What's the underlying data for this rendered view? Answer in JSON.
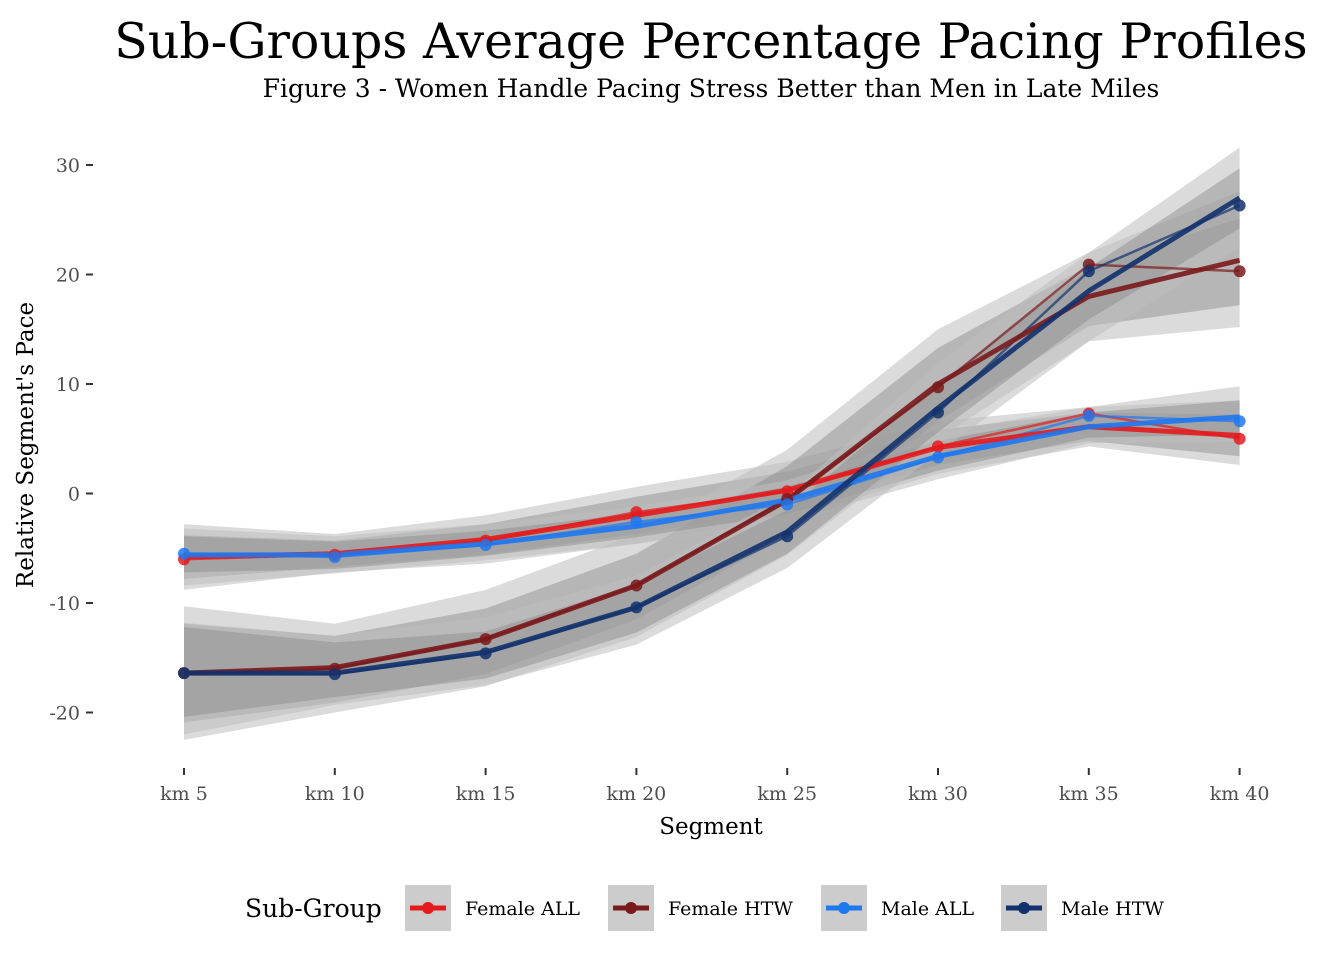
{
  "chart_data": {
    "type": "line",
    "title": "Sub-Groups Average Percentage Pacing Profiles",
    "subtitle": "Figure 3 - Women Handle Pacing Stress Better than Men in Late Miles",
    "xlabel": "Segment",
    "ylabel": "Relative Segment's Pace",
    "categories": [
      "km 5",
      "km 10",
      "km 15",
      "km 20",
      "km 25",
      "km 30",
      "km 35",
      "km 40"
    ],
    "ylim": [
      -25,
      31
    ],
    "yticks": [
      -20,
      -10,
      0,
      10,
      20,
      30
    ],
    "ytick_labels": [
      "-20",
      "-10",
      "0",
      "10",
      "20",
      "30"
    ],
    "grid": false,
    "legend": {
      "title": "Sub-Group",
      "position": "bottom"
    },
    "series": [
      {
        "name": "Female ALL",
        "color": "#e41a1c",
        "values": [
          -6.0,
          -5.6,
          -4.3,
          -1.7,
          0.2,
          4.3,
          7.3,
          5.0
        ],
        "smooth": [
          -5.8,
          -5.5,
          -4.2,
          -2.0,
          0.3,
          4.2,
          6.1,
          5.3
        ],
        "band_outer": [
          [
            -8.8,
            -2.8
          ],
          [
            -7.2,
            -3.7
          ],
          [
            -6.4,
            -2.0
          ],
          [
            -4.6,
            0.6
          ],
          [
            -2.3,
            2.9
          ],
          [
            1.8,
            6.6
          ],
          [
            4.3,
            7.9
          ],
          [
            2.6,
            8.5
          ]
        ],
        "band_inner": [
          [
            -7.8,
            -3.8
          ],
          [
            -6.7,
            -4.3
          ],
          [
            -5.6,
            -2.8
          ],
          [
            -3.7,
            -0.3
          ],
          [
            -1.4,
            2.0
          ],
          [
            2.6,
            5.8
          ],
          [
            4.8,
            7.4
          ],
          [
            3.4,
            7.2
          ]
        ]
      },
      {
        "name": "Female HTW",
        "color": "#7a1a1c",
        "values": [
          -16.4,
          -16.0,
          -13.3,
          -8.4,
          -0.5,
          9.7,
          20.9,
          20.3
        ],
        "smooth": [
          -16.4,
          -15.9,
          -13.3,
          -8.4,
          -0.6,
          10.0,
          18.0,
          21.3
        ],
        "band_outer": [
          [
            -22.5,
            -10.3
          ],
          [
            -20.0,
            -11.9
          ],
          [
            -17.6,
            -8.8
          ],
          [
            -13.1,
            -3.7
          ],
          [
            -5.6,
            4.0
          ],
          [
            5.0,
            15.0
          ],
          [
            13.9,
            22.0
          ],
          [
            15.2,
            27.6
          ]
        ],
        "band_inner": [
          [
            -20.9,
            -11.9
          ],
          [
            -19.1,
            -13.0
          ],
          [
            -16.5,
            -10.5
          ],
          [
            -11.5,
            -5.5
          ],
          [
            -3.9,
            2.5
          ],
          [
            6.6,
            13.3
          ],
          [
            15.3,
            20.8
          ],
          [
            17.2,
            25.1
          ]
        ]
      },
      {
        "name": "Male ALL",
        "color": "#1e78f0",
        "values": [
          -5.5,
          -5.8,
          -4.7,
          -2.6,
          -1.0,
          3.3,
          7.1,
          6.6
        ],
        "smooth": [
          -5.6,
          -5.6,
          -4.6,
          -3.0,
          -0.6,
          3.4,
          6.1,
          7.0
        ],
        "band_outer": [
          [
            -8.4,
            -3.2
          ],
          [
            -7.3,
            -3.9
          ],
          [
            -6.1,
            -2.8
          ],
          [
            -4.6,
            -1.2
          ],
          [
            -2.5,
            1.2
          ],
          [
            1.3,
            5.6
          ],
          [
            4.6,
            7.9
          ],
          [
            4.7,
            9.8
          ]
        ],
        "band_inner": [
          [
            -7.2,
            -3.9
          ],
          [
            -6.9,
            -4.4
          ],
          [
            -5.7,
            -3.4
          ],
          [
            -4.0,
            -1.8
          ],
          [
            -1.9,
            0.6
          ],
          [
            2.1,
            4.8
          ],
          [
            5.1,
            7.4
          ],
          [
            5.4,
            8.5
          ]
        ]
      },
      {
        "name": "Male HTW",
        "color": "#12326e",
        "values": [
          -16.4,
          -16.5,
          -14.6,
          -10.4,
          -3.9,
          7.4,
          20.3,
          26.3
        ],
        "smooth": [
          -16.4,
          -16.4,
          -14.5,
          -10.4,
          -3.5,
          7.8,
          18.5,
          27.0
        ],
        "band_outer": [
          [
            -22.0,
            -11.8
          ],
          [
            -19.3,
            -13.0
          ],
          [
            -17.5,
            -11.3
          ],
          [
            -13.8,
            -7.5
          ],
          [
            -6.8,
            -0.2
          ],
          [
            3.7,
            11.9
          ],
          [
            13.9,
            22.0
          ],
          [
            22.5,
            31.6
          ]
        ],
        "band_inner": [
          [
            -20.4,
            -12.2
          ],
          [
            -18.6,
            -13.6
          ],
          [
            -16.9,
            -12.6
          ],
          [
            -12.7,
            -8.3
          ],
          [
            -5.5,
            -1.5
          ],
          [
            5.6,
            10.0
          ],
          [
            15.9,
            20.6
          ],
          [
            24.2,
            29.7
          ]
        ]
      }
    ]
  }
}
